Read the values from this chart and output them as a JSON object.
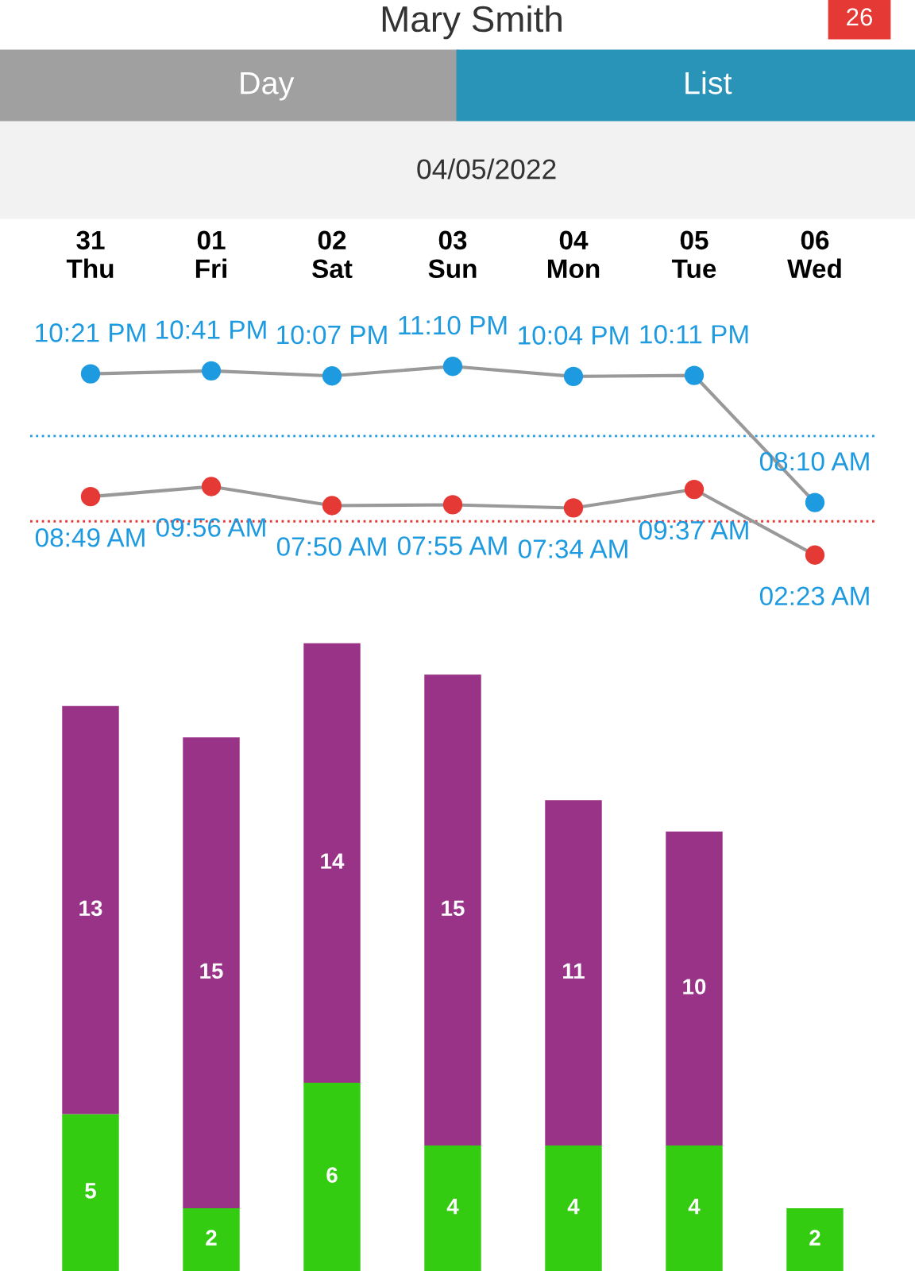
{
  "chart_data": [
    {
      "type": "line",
      "annotations": [
        "Mary Smith",
        "26",
        "Day",
        "List",
        "04/05/2022"
      ],
      "categories": [
        "31\nThu",
        "01\nFri",
        "02\nSat",
        "03\nSun",
        "04\nMon",
        "05\nTue",
        "06\nWed"
      ],
      "series": [
        {
          "color": "#1e9be0",
          "values": [
            22.35,
            22.68,
            22.12,
            23.17,
            22.07,
            22.18,
            8.17
          ],
          "value_labels": [
            "10:21 PM",
            "10:41 PM",
            "10:07 PM",
            "11:10 PM",
            "10:04 PM",
            "10:11 PM",
            "08:10 AM"
          ]
        },
        {
          "color": "#e53935",
          "values": [
            8.82,
            9.93,
            7.83,
            7.92,
            7.57,
            9.62,
            2.38
          ],
          "value_labels": [
            "08:49 AM",
            "09:56 AM",
            "07:50 AM",
            "07:55 AM",
            "07:34 AM",
            "09:37 AM",
            "02:23 AM"
          ]
        }
      ],
      "ref_lines": [
        {
          "axis": "y",
          "value": 15.5,
          "color": "#1e9be0",
          "line_style": "dotted"
        },
        {
          "axis": "y",
          "value": 6.1,
          "color": "#e53935",
          "line_style": "dotted"
        }
      ],
      "marker": "circle",
      "line_style": "solid",
      "tick_labels": "x",
      "grid": false,
      "legend": false
    },
    {
      "type": "bar",
      "stacked": true,
      "data_labels": true,
      "categories": [
        null,
        null,
        null,
        null,
        null,
        null,
        null
      ],
      "series": [
        {
          "color": "#33cc11",
          "values": [
            5,
            2,
            6,
            4,
            4,
            4,
            2
          ]
        },
        {
          "color": "#993388",
          "values": [
            13,
            15,
            14,
            15,
            11,
            10,
            null
          ]
        }
      ],
      "tick_labels": false,
      "grid": false,
      "legend": false
    }
  ]
}
